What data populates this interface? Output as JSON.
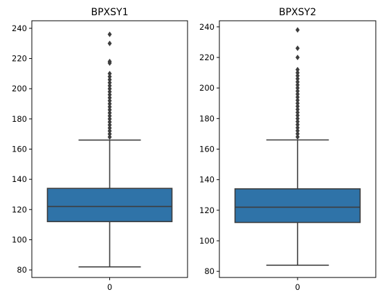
{
  "chart_data": [
    {
      "type": "box",
      "title": "BPXSY1",
      "categories": [
        "0"
      ],
      "ylim": [
        75,
        245
      ],
      "yticks": [
        80,
        100,
        120,
        140,
        160,
        180,
        200,
        220,
        240
      ],
      "box_color": "#2f73a8",
      "line_color": "#3d3d3d",
      "stats": {
        "whisker_low": 82,
        "q1": 112,
        "median": 122,
        "q3": 134,
        "whisker_high": 166
      },
      "outliers": [
        168,
        170,
        172,
        174,
        176,
        178,
        180,
        182,
        184,
        186,
        188,
        190,
        192,
        194,
        196,
        198,
        200,
        202,
        204,
        206,
        208,
        210,
        217,
        218,
        230,
        236
      ]
    },
    {
      "type": "box",
      "title": "BPXSY2",
      "categories": [
        "0"
      ],
      "ylim": [
        76,
        244
      ],
      "yticks": [
        80,
        100,
        120,
        140,
        160,
        180,
        200,
        220,
        240
      ],
      "box_color": "#2f73a8",
      "line_color": "#3d3d3d",
      "stats": {
        "whisker_low": 84,
        "q1": 112,
        "median": 122,
        "q3": 134,
        "whisker_high": 166
      },
      "outliers": [
        168,
        170,
        172,
        174,
        176,
        178,
        180,
        182,
        184,
        186,
        188,
        190,
        192,
        194,
        196,
        198,
        200,
        202,
        204,
        206,
        208,
        210,
        212,
        220,
        226,
        238
      ]
    }
  ]
}
